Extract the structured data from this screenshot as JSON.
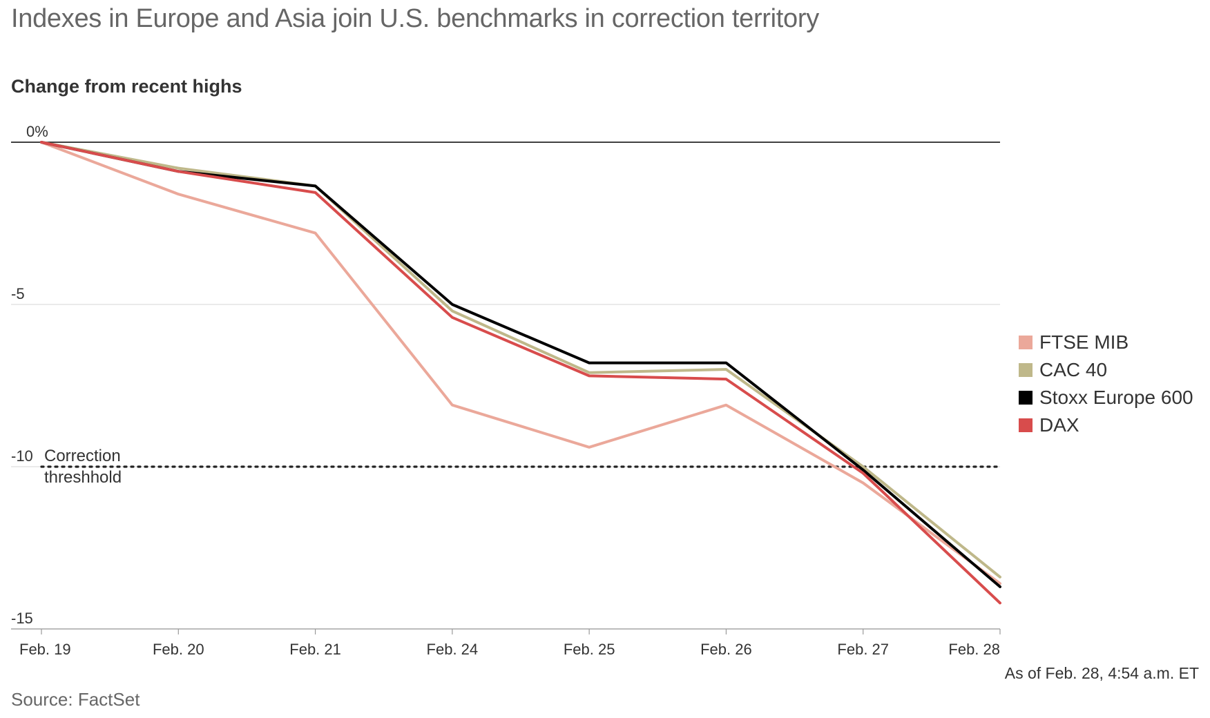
{
  "title": "Indexes in Europe and Asia join U.S. benchmarks in correction territory",
  "subtitle": "Change from recent highs",
  "footer": {
    "source": "Source: FactSet",
    "as_of": "As of Feb. 28, 4:54 a.m. ET"
  },
  "chart_data": {
    "type": "line",
    "title": "Indexes in Europe and Asia join U.S. benchmarks in correction territory",
    "subtitle": "Change from recent highs",
    "x": [
      "Feb. 19",
      "Feb. 20",
      "Feb. 21",
      "Feb. 24",
      "Feb. 25",
      "Feb. 26",
      "Feb. 27",
      "Feb. 28"
    ],
    "ylim": [
      -15,
      0
    ],
    "y_ticks": [
      {
        "value": 0,
        "label": "0%"
      },
      {
        "value": -5,
        "label": "-5"
      },
      {
        "value": -10,
        "label": "-10"
      },
      {
        "value": -15,
        "label": "-15"
      }
    ],
    "grid": true,
    "legend_position": "right",
    "series": [
      {
        "name": "FTSE MIB",
        "color": "#eba89a",
        "values": [
          0,
          -1.6,
          -2.8,
          -8.1,
          -9.4,
          -8.1,
          -10.5,
          -13.6
        ]
      },
      {
        "name": "CAC 40",
        "color": "#bfb88a",
        "values": [
          0,
          -0.8,
          -1.35,
          -5.2,
          -7.1,
          -7.0,
          -10.0,
          -13.4
        ]
      },
      {
        "name": "Stoxx Europe 600",
        "color": "#000000",
        "values": [
          0,
          -0.9,
          -1.35,
          -5.0,
          -6.8,
          -6.8,
          -10.1,
          -13.7
        ]
      },
      {
        "name": "DAX",
        "color": "#d84c4c",
        "values": [
          0,
          -0.9,
          -1.55,
          -5.4,
          -7.2,
          -7.3,
          -10.2,
          -14.2
        ]
      }
    ],
    "threshold": {
      "value": -10,
      "label_line1": "Correction",
      "label_line2": "threshhold"
    }
  }
}
